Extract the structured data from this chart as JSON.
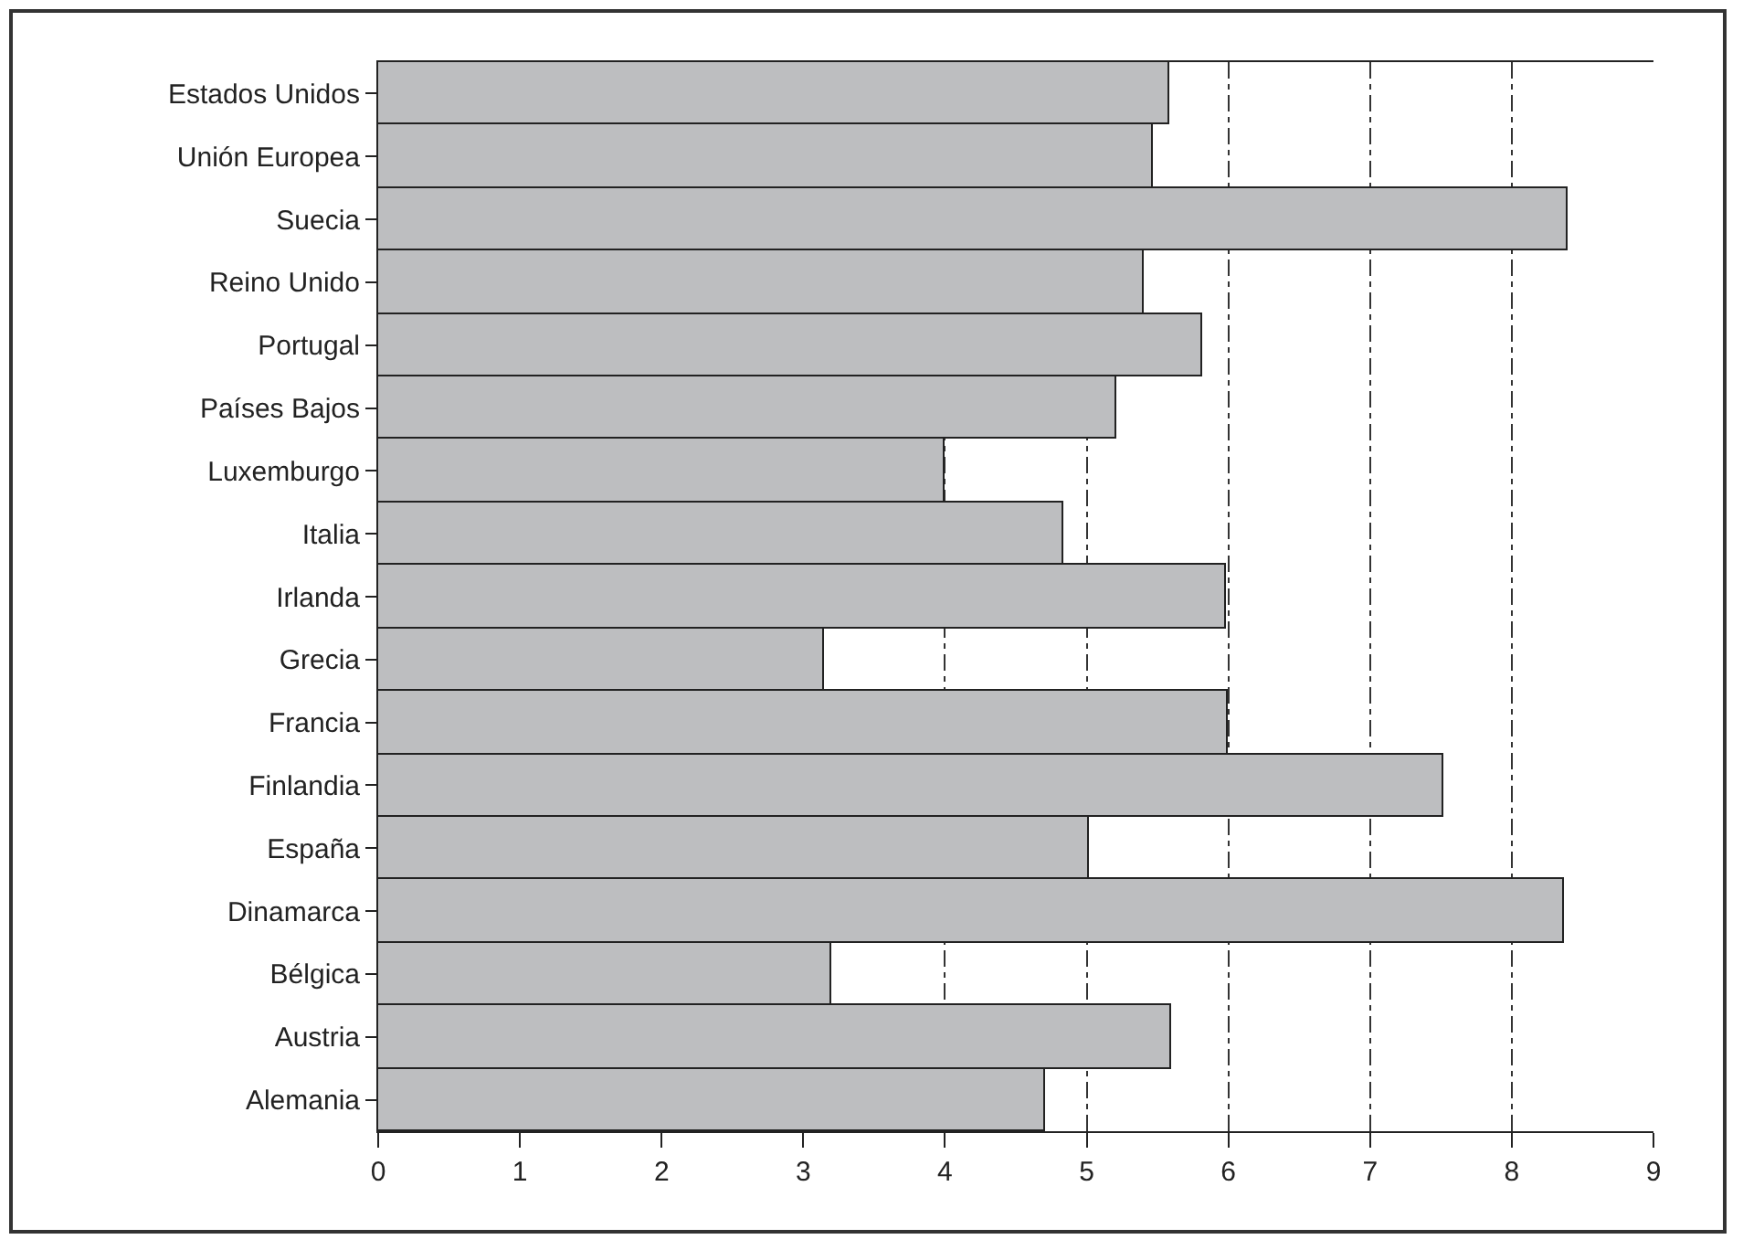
{
  "chart_data": {
    "type": "bar",
    "orientation": "horizontal",
    "categories": [
      "Estados Unidos",
      "Unión Europea",
      "Suecia",
      "Reino Unido",
      "Portugal",
      "Países Bajos",
      "Luxemburgo",
      "Italia",
      "Irlanda",
      "Grecia",
      "Francia",
      "Finlandia",
      "España",
      "Dinamarca",
      "Bélgica",
      "Austria",
      "Alemania"
    ],
    "values": [
      5.58,
      5.47,
      8.4,
      5.4,
      5.82,
      5.21,
      4.0,
      4.83,
      5.98,
      3.14,
      6.0,
      7.52,
      5.01,
      8.37,
      3.2,
      5.59,
      4.71
    ],
    "color": "#bdbec0",
    "xlim": [
      0,
      9
    ],
    "xticks": [
      0,
      1,
      2,
      3,
      4,
      5,
      6,
      7,
      8,
      9
    ],
    "grid": "x",
    "line_style": "dashed"
  }
}
